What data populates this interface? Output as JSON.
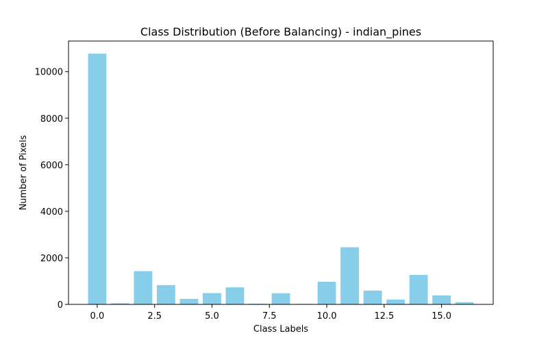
{
  "chart_data": {
    "type": "bar",
    "title": "Class Distribution (Before Balancing) - indian_pines",
    "xlabel": "Class Labels",
    "ylabel": "Number of Pixels",
    "x": [
      0,
      1,
      2,
      3,
      4,
      5,
      6,
      7,
      8,
      9,
      10,
      11,
      12,
      13,
      14,
      15,
      16
    ],
    "values": [
      10776,
      46,
      1428,
      830,
      237,
      483,
      730,
      28,
      478,
      20,
      972,
      2455,
      593,
      205,
      1265,
      386,
      93
    ],
    "xlim": [
      -1.25,
      17.25
    ],
    "ylim": [
      0,
      11315
    ],
    "xticks": [
      0.0,
      2.5,
      5.0,
      7.5,
      10.0,
      12.5,
      15.0
    ],
    "xtick_labels": [
      "0.0",
      "2.5",
      "5.0",
      "7.5",
      "10.0",
      "12.5",
      "15.0"
    ],
    "yticks": [
      0,
      2000,
      4000,
      6000,
      8000,
      10000
    ],
    "ytick_labels": [
      "0",
      "2000",
      "4000",
      "6000",
      "8000",
      "10000"
    ],
    "bar_color": "#87ceeb",
    "grid": false,
    "legend": "none"
  }
}
